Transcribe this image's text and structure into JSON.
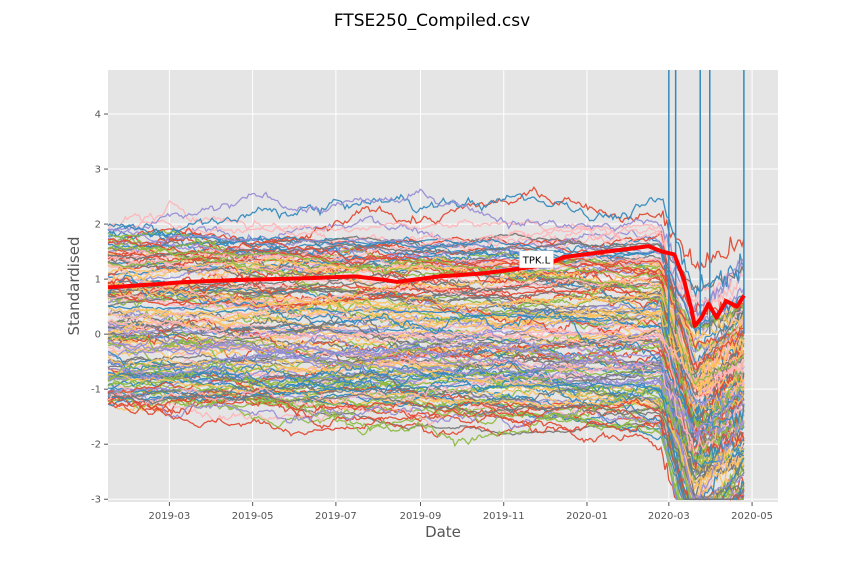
{
  "chart_data": {
    "type": "line",
    "title": "FTSE250_Compiled.csv",
    "xlabel": "Date",
    "ylabel": "Standardised",
    "x_range": [
      "2019-01-15",
      "2020-05-20"
    ],
    "ylim": [
      -3.05,
      4.8
    ],
    "x_ticks": [
      "2019-03",
      "2019-05",
      "2019-07",
      "2019-09",
      "2019-11",
      "2020-01",
      "2020-03",
      "2020-05"
    ],
    "y_ticks": [
      -3,
      -2,
      -1,
      0,
      1,
      2,
      3,
      4
    ],
    "grid": true,
    "style": "ggplot",
    "highlight": {
      "name": "TPK.L",
      "color": "#ff0000",
      "label_x": "2019-11-25",
      "label_y": 1.35,
      "x": [
        "2019-01-15",
        "2019-02-15",
        "2019-03-15",
        "2019-04-15",
        "2019-05-15",
        "2019-06-15",
        "2019-07-15",
        "2019-08-01",
        "2019-08-15",
        "2019-09-15",
        "2019-10-15",
        "2019-11-01",
        "2019-11-15",
        "2019-12-01",
        "2019-12-15",
        "2020-01-15",
        "2020-02-01",
        "2020-02-15",
        "2020-02-25",
        "2020-03-05",
        "2020-03-12",
        "2020-03-17",
        "2020-03-20",
        "2020-03-25",
        "2020-03-30",
        "2020-04-05",
        "2020-04-12",
        "2020-04-20",
        "2020-04-25"
      ],
      "y": [
        0.85,
        0.9,
        0.95,
        0.98,
        1.0,
        1.02,
        1.05,
        1.0,
        0.95,
        1.05,
        1.1,
        1.15,
        1.2,
        1.25,
        1.4,
        1.5,
        1.55,
        1.6,
        1.5,
        1.45,
        1.0,
        0.5,
        0.15,
        0.3,
        0.55,
        0.3,
        0.6,
        0.5,
        0.7
      ]
    },
    "series_palette": [
      "#E24A33",
      "#348ABD",
      "#988ED5",
      "#777777",
      "#FBC15E",
      "#8EBA42",
      "#FFB5B8"
    ],
    "series_count": 160,
    "outlier_spikes": [
      "2020-03-01",
      "2020-03-06",
      "2020-03-24",
      "2020-03-31",
      "2020-04-25"
    ]
  }
}
